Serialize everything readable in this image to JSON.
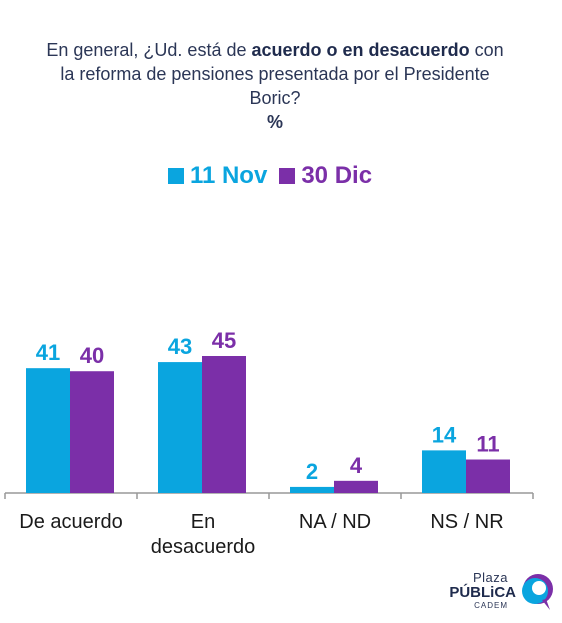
{
  "question": {
    "part1": "En general, ¿Ud. está de",
    "bold1": "acuerdo o en desacuerdo",
    "part2": "con la reforma de pensiones presentada por el Presidente Boric?",
    "unit": "%"
  },
  "colors": {
    "nov": "#0aa5df",
    "dic": "#7b2fa8",
    "axis": "#999999",
    "text": "#2b3656"
  },
  "chart_data": {
    "type": "bar",
    "categories": [
      [
        "De acuerdo"
      ],
      [
        "En",
        "desacuerdo"
      ],
      [
        "NA / ND"
      ],
      [
        "NS / NR"
      ]
    ],
    "series": [
      {
        "name": "11 Nov",
        "values": [
          41,
          43,
          2,
          14
        ]
      },
      {
        "name": "30 Dic",
        "values": [
          40,
          45,
          4,
          11
        ]
      }
    ],
    "ylim": [
      0,
      45
    ],
    "legend_position": "top-center",
    "grid": false
  },
  "logo": {
    "line1": "Plaza",
    "line2": "PÚBLiCA",
    "line3": "CADEM",
    "icon": "plaza-publica-logo-icon"
  }
}
